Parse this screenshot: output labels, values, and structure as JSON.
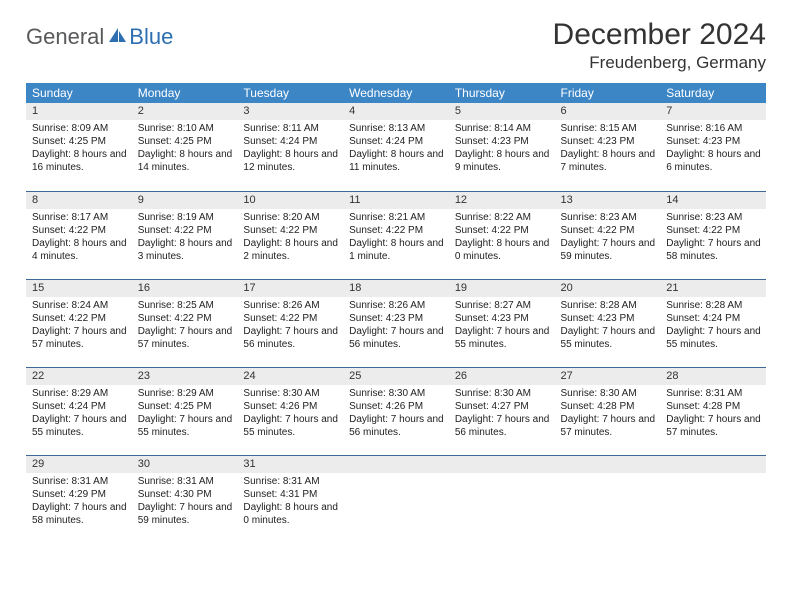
{
  "logo": {
    "general": "General",
    "blue": "Blue"
  },
  "title": "December 2024",
  "location": "Freudenberg, Germany",
  "colors": {
    "header_bg": "#3d86c6",
    "header_fg": "#ffffff",
    "daynum_bg": "#ececec",
    "rule": "#3d6a96",
    "logo_general": "#58595b",
    "logo_blue": "#2d6fb0",
    "text": "#333333"
  },
  "weekdays": [
    "Sunday",
    "Monday",
    "Tuesday",
    "Wednesday",
    "Thursday",
    "Friday",
    "Saturday"
  ],
  "weeks": [
    [
      {
        "n": "1",
        "sunrise": "Sunrise: 8:09 AM",
        "sunset": "Sunset: 4:25 PM",
        "daylight": "Daylight: 8 hours and 16 minutes."
      },
      {
        "n": "2",
        "sunrise": "Sunrise: 8:10 AM",
        "sunset": "Sunset: 4:25 PM",
        "daylight": "Daylight: 8 hours and 14 minutes."
      },
      {
        "n": "3",
        "sunrise": "Sunrise: 8:11 AM",
        "sunset": "Sunset: 4:24 PM",
        "daylight": "Daylight: 8 hours and 12 minutes."
      },
      {
        "n": "4",
        "sunrise": "Sunrise: 8:13 AM",
        "sunset": "Sunset: 4:24 PM",
        "daylight": "Daylight: 8 hours and 11 minutes."
      },
      {
        "n": "5",
        "sunrise": "Sunrise: 8:14 AM",
        "sunset": "Sunset: 4:23 PM",
        "daylight": "Daylight: 8 hours and 9 minutes."
      },
      {
        "n": "6",
        "sunrise": "Sunrise: 8:15 AM",
        "sunset": "Sunset: 4:23 PM",
        "daylight": "Daylight: 8 hours and 7 minutes."
      },
      {
        "n": "7",
        "sunrise": "Sunrise: 8:16 AM",
        "sunset": "Sunset: 4:23 PM",
        "daylight": "Daylight: 8 hours and 6 minutes."
      }
    ],
    [
      {
        "n": "8",
        "sunrise": "Sunrise: 8:17 AM",
        "sunset": "Sunset: 4:22 PM",
        "daylight": "Daylight: 8 hours and 4 minutes."
      },
      {
        "n": "9",
        "sunrise": "Sunrise: 8:19 AM",
        "sunset": "Sunset: 4:22 PM",
        "daylight": "Daylight: 8 hours and 3 minutes."
      },
      {
        "n": "10",
        "sunrise": "Sunrise: 8:20 AM",
        "sunset": "Sunset: 4:22 PM",
        "daylight": "Daylight: 8 hours and 2 minutes."
      },
      {
        "n": "11",
        "sunrise": "Sunrise: 8:21 AM",
        "sunset": "Sunset: 4:22 PM",
        "daylight": "Daylight: 8 hours and 1 minute."
      },
      {
        "n": "12",
        "sunrise": "Sunrise: 8:22 AM",
        "sunset": "Sunset: 4:22 PM",
        "daylight": "Daylight: 8 hours and 0 minutes."
      },
      {
        "n": "13",
        "sunrise": "Sunrise: 8:23 AM",
        "sunset": "Sunset: 4:22 PM",
        "daylight": "Daylight: 7 hours and 59 minutes."
      },
      {
        "n": "14",
        "sunrise": "Sunrise: 8:23 AM",
        "sunset": "Sunset: 4:22 PM",
        "daylight": "Daylight: 7 hours and 58 minutes."
      }
    ],
    [
      {
        "n": "15",
        "sunrise": "Sunrise: 8:24 AM",
        "sunset": "Sunset: 4:22 PM",
        "daylight": "Daylight: 7 hours and 57 minutes."
      },
      {
        "n": "16",
        "sunrise": "Sunrise: 8:25 AM",
        "sunset": "Sunset: 4:22 PM",
        "daylight": "Daylight: 7 hours and 57 minutes."
      },
      {
        "n": "17",
        "sunrise": "Sunrise: 8:26 AM",
        "sunset": "Sunset: 4:22 PM",
        "daylight": "Daylight: 7 hours and 56 minutes."
      },
      {
        "n": "18",
        "sunrise": "Sunrise: 8:26 AM",
        "sunset": "Sunset: 4:23 PM",
        "daylight": "Daylight: 7 hours and 56 minutes."
      },
      {
        "n": "19",
        "sunrise": "Sunrise: 8:27 AM",
        "sunset": "Sunset: 4:23 PM",
        "daylight": "Daylight: 7 hours and 55 minutes."
      },
      {
        "n": "20",
        "sunrise": "Sunrise: 8:28 AM",
        "sunset": "Sunset: 4:23 PM",
        "daylight": "Daylight: 7 hours and 55 minutes."
      },
      {
        "n": "21",
        "sunrise": "Sunrise: 8:28 AM",
        "sunset": "Sunset: 4:24 PM",
        "daylight": "Daylight: 7 hours and 55 minutes."
      }
    ],
    [
      {
        "n": "22",
        "sunrise": "Sunrise: 8:29 AM",
        "sunset": "Sunset: 4:24 PM",
        "daylight": "Daylight: 7 hours and 55 minutes."
      },
      {
        "n": "23",
        "sunrise": "Sunrise: 8:29 AM",
        "sunset": "Sunset: 4:25 PM",
        "daylight": "Daylight: 7 hours and 55 minutes."
      },
      {
        "n": "24",
        "sunrise": "Sunrise: 8:30 AM",
        "sunset": "Sunset: 4:26 PM",
        "daylight": "Daylight: 7 hours and 55 minutes."
      },
      {
        "n": "25",
        "sunrise": "Sunrise: 8:30 AM",
        "sunset": "Sunset: 4:26 PM",
        "daylight": "Daylight: 7 hours and 56 minutes."
      },
      {
        "n": "26",
        "sunrise": "Sunrise: 8:30 AM",
        "sunset": "Sunset: 4:27 PM",
        "daylight": "Daylight: 7 hours and 56 minutes."
      },
      {
        "n": "27",
        "sunrise": "Sunrise: 8:30 AM",
        "sunset": "Sunset: 4:28 PM",
        "daylight": "Daylight: 7 hours and 57 minutes."
      },
      {
        "n": "28",
        "sunrise": "Sunrise: 8:31 AM",
        "sunset": "Sunset: 4:28 PM",
        "daylight": "Daylight: 7 hours and 57 minutes."
      }
    ],
    [
      {
        "n": "29",
        "sunrise": "Sunrise: 8:31 AM",
        "sunset": "Sunset: 4:29 PM",
        "daylight": "Daylight: 7 hours and 58 minutes."
      },
      {
        "n": "30",
        "sunrise": "Sunrise: 8:31 AM",
        "sunset": "Sunset: 4:30 PM",
        "daylight": "Daylight: 7 hours and 59 minutes."
      },
      {
        "n": "31",
        "sunrise": "Sunrise: 8:31 AM",
        "sunset": "Sunset: 4:31 PM",
        "daylight": "Daylight: 8 hours and 0 minutes."
      },
      null,
      null,
      null,
      null
    ]
  ]
}
